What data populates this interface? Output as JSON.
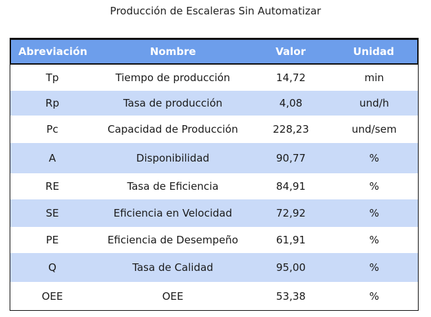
{
  "title": "Producción de Escaleras Sin Automatizar",
  "columns": [
    "Abreviación",
    "Nombre",
    "Valor",
    "Unidad"
  ],
  "rows": [
    {
      "abbr": "Tp",
      "name": "Tiempo de producción",
      "value": "14,72",
      "unit": "min"
    },
    {
      "abbr": "Rp",
      "name": "Tasa de producción",
      "value": "4,08",
      "unit": "und/h"
    },
    {
      "abbr": "Pc",
      "name": "Capacidad de Producción",
      "value": "228,23",
      "unit": "und/sem"
    },
    {
      "abbr": "A",
      "name": "Disponibilidad",
      "value": "90,77",
      "unit": "%"
    },
    {
      "abbr": "RE",
      "name": "Tasa de Eficiencia",
      "value": "84,91",
      "unit": "%"
    },
    {
      "abbr": "SE",
      "name": "Eficiencia en Velocidad",
      "value": "72,92",
      "unit": "%"
    },
    {
      "abbr": "PE",
      "name": "Eficiencia de Desempeño",
      "value": "61,91",
      "unit": "%"
    },
    {
      "abbr": "Q",
      "name": "Tasa de Calidad",
      "value": "95,00",
      "unit": "%"
    },
    {
      "abbr": "OEE",
      "name": "OEE",
      "value": "53,38",
      "unit": "%"
    }
  ],
  "colors": {
    "header_bg": "#6d9eeb",
    "band_bg": "#c9daf8",
    "plain_bg": "#ffffff"
  }
}
